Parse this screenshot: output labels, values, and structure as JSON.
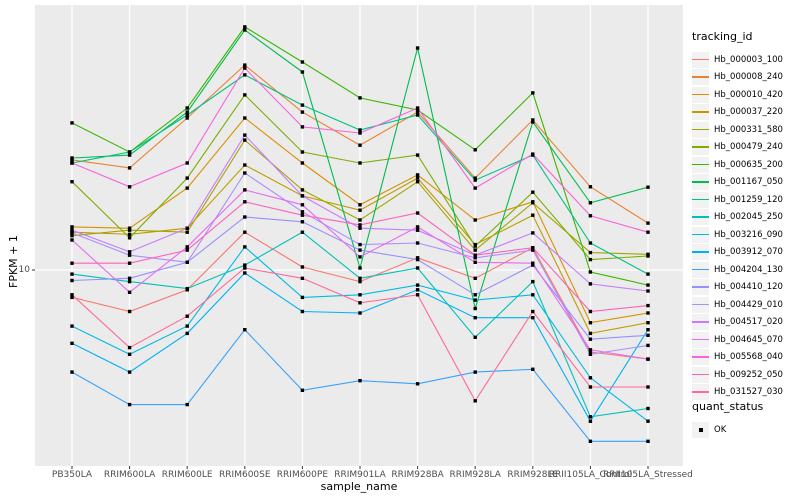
{
  "figure": {
    "ylabel": "FPKM + 1",
    "xlabel": "sample_name",
    "y_tick_label": "10",
    "legend_title": "tracking_id",
    "quant_legend_title": "quant_status",
    "quant_ok_label": "OK",
    "panel_bg": "#EBEBEB",
    "grid_color": "#FFFFFF",
    "tick_color": "#333333",
    "tick_text_color": "#4D4D4D",
    "point_color": "#000000"
  },
  "chart_data": {
    "type": "line",
    "title": "",
    "xlabel": "sample_name",
    "ylabel": "FPKM + 1",
    "y_scale": "log10",
    "y_tick_values": [
      10
    ],
    "y_range_approx": [
      1.4,
      140
    ],
    "grid": "major-only",
    "legend_position": "right",
    "legend_title": "tracking_id",
    "quant_status_legend": {
      "title": "quant_status",
      "items": [
        {
          "label": "OK",
          "marker": "black-square"
        }
      ]
    },
    "categories": [
      "PB350LA",
      "RRIM600LA",
      "RRIM600LE",
      "RRIM600SE",
      "RRIM600PE",
      "RRIM901LA",
      "RRIM928BA",
      "RRIM928LA",
      "RRIM928LE",
      "RRII105LA_Control",
      "RRII105LA_Stressed"
    ],
    "series": [
      {
        "name": "Hb_000003_100",
        "color": "#F8766D",
        "values": [
          7.6,
          6.6,
          8.2,
          14.6,
          10.3,
          8.9,
          11.3,
          9.2,
          12.5,
          4.4,
          4.1
        ]
      },
      {
        "name": "Hb_000008_240",
        "color": "#EA8331",
        "values": [
          30.1,
          27.8,
          45.8,
          77.8,
          48.6,
          34.9,
          48.6,
          25.1,
          44.9,
          23.0,
          16.0
        ]
      },
      {
        "name": "Hb_000010_420",
        "color": "#D89000",
        "values": [
          15.4,
          15.2,
          22.7,
          45.8,
          29.2,
          19.2,
          25.9,
          16.5,
          19.8,
          5.9,
          6.5
        ]
      },
      {
        "name": "Hb_000037_220",
        "color": "#C09B00",
        "values": [
          14.6,
          14.3,
          15.2,
          28.6,
          21.0,
          18.2,
          25.1,
          12.9,
          17.3,
          5.3,
          5.9
        ]
      },
      {
        "name": "Hb_000331_580",
        "color": "#A3A500",
        "values": [
          14.1,
          14.9,
          14.6,
          36.7,
          22.3,
          16.5,
          24.2,
          12.2,
          19.6,
          11.9,
          11.7
        ]
      },
      {
        "name": "Hb_000479_240",
        "color": "#7CAE00",
        "values": [
          24.2,
          13.8,
          25.1,
          57.7,
          32.6,
          29.2,
          31.6,
          12.7,
          21.8,
          11.1,
          11.5
        ]
      },
      {
        "name": "Hb_000635_200",
        "color": "#39B600",
        "values": [
          43.6,
          32.6,
          50.6,
          114.0,
          80.2,
          56.0,
          49.6,
          33.3,
          58.9,
          9.8,
          8.6
        ]
      },
      {
        "name": "Hb_001167_050",
        "color": "#00BB4E",
        "values": [
          30.7,
          31.6,
          48.6,
          110.5,
          72.6,
          10.2,
          92.3,
          6.8,
          44.0,
          19.6,
          22.9
        ]
      },
      {
        "name": "Hb_001259_120",
        "color": "#00C087",
        "values": [
          29.2,
          32.6,
          47.2,
          70.5,
          52.1,
          40.6,
          47.2,
          24.6,
          31.6,
          13.1,
          9.6
        ]
      },
      {
        "name": "Hb_002045_250",
        "color": "#00C0B8",
        "values": [
          9.6,
          8.9,
          8.3,
          10.5,
          14.6,
          9.2,
          10.2,
          5.1,
          8.9,
          2.3,
          2.5
        ]
      },
      {
        "name": "Hb_003216_090",
        "color": "#00BAE0",
        "values": [
          5.7,
          4.3,
          5.7,
          12.6,
          7.6,
          7.8,
          8.6,
          7.4,
          7.8,
          3.4,
          2.2
        ]
      },
      {
        "name": "Hb_003912_070",
        "color": "#00B0F6",
        "values": [
          4.8,
          3.6,
          5.3,
          9.7,
          6.6,
          6.5,
          8.2,
          6.2,
          6.2,
          2.2,
          5.5
        ]
      },
      {
        "name": "Hb_004204_130",
        "color": "#35A2FF",
        "values": [
          3.6,
          2.6,
          2.6,
          5.5,
          3.0,
          3.3,
          3.2,
          3.6,
          3.7,
          1.8,
          1.8
        ]
      },
      {
        "name": "Hb_004410_120",
        "color": "#9590FF",
        "values": [
          9.0,
          9.2,
          10.8,
          17.0,
          16.2,
          12.2,
          11.1,
          7.8,
          10.5,
          5.0,
          5.2
        ]
      },
      {
        "name": "Hb_004429_010",
        "color": "#AD8CFF",
        "values": [
          14.5,
          11.6,
          10.8,
          26.4,
          17.9,
          12.9,
          13.1,
          11.3,
          12.2,
          4.3,
          4.7
        ]
      },
      {
        "name": "Hb_004517_020",
        "color": "#C77CFF",
        "values": [
          14.9,
          12.0,
          15.2,
          38.6,
          21.0,
          15.2,
          14.9,
          11.6,
          14.5,
          8.7,
          8.1
        ]
      },
      {
        "name": "Hb_004645_070",
        "color": "#E76BF3",
        "values": [
          13.5,
          8.0,
          12.6,
          22.3,
          19.2,
          11.4,
          15.4,
          10.8,
          10.7,
          4.5,
          4.1
        ]
      },
      {
        "name": "Hb_005568_040",
        "color": "#FA62DB",
        "values": [
          29.2,
          23.0,
          29.2,
          75.5,
          41.9,
          39.4,
          50.6,
          22.7,
          31.9,
          17.2,
          14.6
        ]
      },
      {
        "name": "Hb_009252_050",
        "color": "#FF62BC",
        "values": [
          10.7,
          10.7,
          12.2,
          19.8,
          17.3,
          15.7,
          17.7,
          11.6,
          12.5,
          6.6,
          7.0
        ]
      },
      {
        "name": "Hb_031527_030",
        "color": "#FF6A98",
        "values": [
          7.8,
          4.6,
          6.3,
          10.2,
          9.2,
          7.2,
          7.8,
          2.7,
          6.6,
          3.1,
          3.1
        ]
      }
    ]
  }
}
